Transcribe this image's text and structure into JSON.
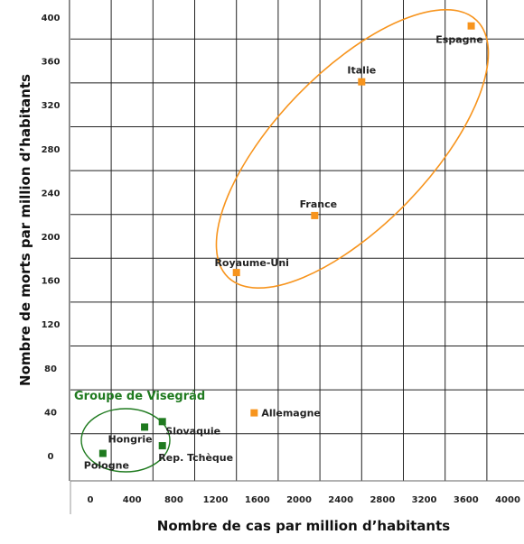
{
  "chart_data": {
    "type": "scatter",
    "xlabel": "Nombre de cas par million d’habitants",
    "ylabel": "Nombre de morts par million d’habitants",
    "x_ticks": [
      "0",
      "400",
      "800",
      "1200",
      "1600",
      "2000",
      "2400",
      "2800",
      "3200",
      "3600",
      "4000"
    ],
    "y_ticks": [
      "0",
      "40",
      "80",
      "120",
      "160",
      "200",
      "240",
      "280",
      "320",
      "360",
      "400"
    ],
    "xlim": [
      -200,
      4200
    ],
    "ylim": [
      -20,
      420
    ],
    "grid": true,
    "points": [
      {
        "label": "Espagne",
        "x": 3650,
        "y": 392,
        "group": "orange"
      },
      {
        "label": "Italie",
        "x": 2600,
        "y": 341,
        "group": "orange"
      },
      {
        "label": "France",
        "x": 2150,
        "y": 219,
        "group": "orange"
      },
      {
        "label": "Royaume-Uni",
        "x": 1400,
        "y": 167,
        "group": "orange"
      },
      {
        "label": "Allemagne",
        "x": 1570,
        "y": 39,
        "group": "orange"
      },
      {
        "label": "Slovaquie",
        "x": 690,
        "y": 31,
        "group": "green"
      },
      {
        "label": "Hongrie",
        "x": 520,
        "y": 26,
        "group": "green"
      },
      {
        "label": "Rep. Tchèque",
        "x": 690,
        "y": 9,
        "group": "green"
      },
      {
        "label": "Pologne",
        "x": 120,
        "y": 2,
        "group": "green"
      }
    ],
    "annotations": [
      {
        "text": "Groupe de Visegrád",
        "color": "#1f7a1f"
      }
    ],
    "colors": {
      "orange": "#f7941d",
      "green": "#1f7a1f",
      "grid": "#222222"
    }
  }
}
